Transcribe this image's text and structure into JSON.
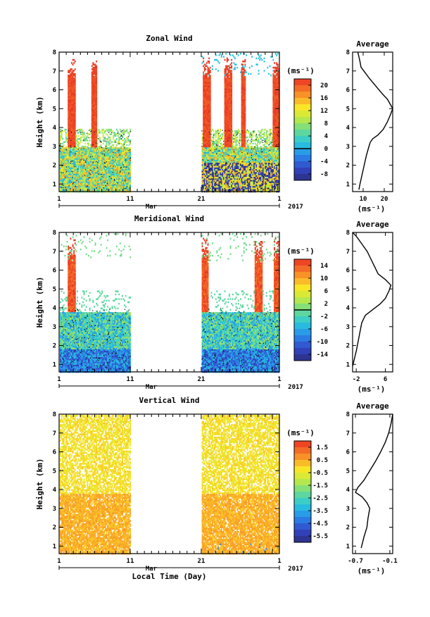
{
  "chart_data": [
    {
      "type": "heatmap",
      "title": "Zonal Wind",
      "ylabel": "Height (km)",
      "ylim": [
        0.6,
        8
      ],
      "y_ticks": [
        "1",
        "2",
        "3",
        "4",
        "5",
        "6",
        "7",
        "8"
      ],
      "x_ticks": [
        "1",
        "11",
        "21",
        "1"
      ],
      "x_month": "Mar",
      "year": "2017",
      "colorbar": {
        "unit": "(ms⁻¹)",
        "labels": [
          "20",
          "16",
          "12",
          "8",
          "4",
          "0",
          "-4",
          "-8"
        ],
        "range": [
          -10,
          22
        ],
        "zero_contour": 0
      },
      "profile": {
        "title": "Average",
        "xlabel": "(ms⁻¹)",
        "x_ticks": [
          "10",
          "20"
        ],
        "xlim": [
          5,
          24
        ],
        "y_ticks": [
          "1",
          "2",
          "3",
          "4",
          "5",
          "6",
          "7",
          "8"
        ],
        "ylim": [
          0.6,
          8
        ],
        "points": [
          [
            8,
            0.7
          ],
          [
            8.5,
            1.0
          ],
          [
            9.5,
            1.5
          ],
          [
            10.5,
            2.0
          ],
          [
            11.5,
            2.5
          ],
          [
            12.5,
            2.9
          ],
          [
            13.3,
            3.2
          ],
          [
            14.5,
            3.4
          ],
          [
            17,
            3.6
          ],
          [
            19.5,
            3.9
          ],
          [
            21.5,
            4.3
          ],
          [
            23,
            4.7
          ],
          [
            24,
            5.0
          ],
          [
            23,
            5.2
          ],
          [
            21.5,
            5.5
          ],
          [
            19,
            5.8
          ],
          [
            16,
            6.2
          ],
          [
            13,
            6.6
          ],
          [
            11,
            6.9
          ],
          [
            9,
            7.2
          ],
          [
            8.5,
            7.5
          ],
          [
            7.5,
            8.0
          ]
        ]
      }
    },
    {
      "type": "heatmap",
      "title": "Meridional Wind",
      "ylabel": "Height (km)",
      "ylim": [
        0.6,
        8
      ],
      "y_ticks": [
        "1",
        "2",
        "3",
        "4",
        "5",
        "6",
        "7",
        "8"
      ],
      "x_ticks": [
        "1",
        "11",
        "21",
        "1"
      ],
      "x_month": "Mar",
      "year": "2017",
      "colorbar": {
        "unit": "(ms⁻¹)",
        "labels": [
          "14",
          "10",
          "6",
          "2",
          "-2",
          "-6",
          "-10",
          "-14"
        ],
        "range": [
          -16,
          16
        ],
        "zero_contour": 0
      },
      "profile": {
        "title": "Average",
        "xlabel": "(ms⁻¹)",
        "x_ticks": [
          "-2",
          "6"
        ],
        "xlim": [
          -3,
          8
        ],
        "y_ticks": [
          "1",
          "2",
          "3",
          "4",
          "5",
          "6",
          "7",
          "8"
        ],
        "ylim": [
          0.6,
          8
        ],
        "points": [
          [
            -3,
            0.9
          ],
          [
            -2.5,
            1.3
          ],
          [
            -2,
            1.7
          ],
          [
            -1.5,
            2.2
          ],
          [
            -1,
            2.7
          ],
          [
            -0.5,
            3.2
          ],
          [
            0.5,
            3.6
          ],
          [
            2.5,
            3.9
          ],
          [
            4.5,
            4.2
          ],
          [
            6,
            4.5
          ],
          [
            7,
            4.9
          ],
          [
            7.5,
            5.2
          ],
          [
            6,
            5.5
          ],
          [
            4,
            5.8
          ],
          [
            3,
            6.2
          ],
          [
            2,
            6.6
          ],
          [
            1,
            7.0
          ],
          [
            -0.5,
            7.4
          ],
          [
            -2,
            7.8
          ],
          [
            -3,
            8.0
          ]
        ]
      }
    },
    {
      "type": "heatmap",
      "title": "Vertical Wind",
      "ylabel": "Height (km)",
      "xlabel": "Local Time (Day)",
      "ylim": [
        0.6,
        8
      ],
      "y_ticks": [
        "1",
        "2",
        "3",
        "4",
        "5",
        "6",
        "7",
        "8"
      ],
      "x_ticks": [
        "1",
        "11",
        "21",
        "1"
      ],
      "x_month": "Mar",
      "year": "2017",
      "colorbar": {
        "unit": "(ms⁻¹)",
        "labels": [
          "1.5",
          "0.5",
          "-0.5",
          "-1.5",
          "-2.5",
          "-3.5",
          "-4.5",
          "-5.5"
        ],
        "range": [
          -6,
          2
        ]
      },
      "profile": {
        "title": "Average",
        "xlabel": "(ms⁻¹)",
        "x_ticks": [
          "-0.7",
          "-0.1"
        ],
        "xlim": [
          -0.75,
          -0.05
        ],
        "y_ticks": [
          "1",
          "2",
          "3",
          "4",
          "5",
          "6",
          "7",
          "8"
        ],
        "ylim": [
          0.6,
          8
        ],
        "points": [
          [
            -0.6,
            0.9
          ],
          [
            -0.55,
            1.5
          ],
          [
            -0.5,
            2.0
          ],
          [
            -0.48,
            2.5
          ],
          [
            -0.45,
            3.0
          ],
          [
            -0.5,
            3.3
          ],
          [
            -0.58,
            3.6
          ],
          [
            -0.7,
            3.85
          ],
          [
            -0.66,
            4.1
          ],
          [
            -0.55,
            4.5
          ],
          [
            -0.45,
            5.0
          ],
          [
            -0.35,
            5.5
          ],
          [
            -0.26,
            6.0
          ],
          [
            -0.18,
            6.5
          ],
          [
            -0.12,
            7.0
          ],
          [
            -0.08,
            7.5
          ],
          [
            -0.05,
            8.0
          ]
        ]
      }
    }
  ]
}
